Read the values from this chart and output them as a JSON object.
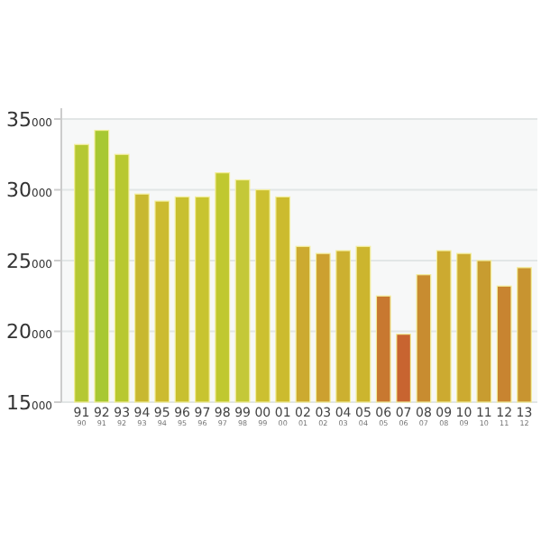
{
  "chart_data": {
    "type": "bar",
    "categories": [
      "91\n90",
      "92\n91",
      "93\n92",
      "94\n93",
      "95\n94",
      "96\n95",
      "97\n96",
      "98\n97",
      "99\n98",
      "00\n99",
      "01\n00",
      "02\n01",
      "03\n02",
      "04\n03",
      "05\n04",
      "06\n05",
      "07\n06",
      "08\n07",
      "09\n08",
      "10\n09",
      "11\n10",
      "12\n11",
      "13\n12"
    ],
    "values": [
      33200,
      34200,
      32500,
      29700,
      29200,
      29500,
      29500,
      31200,
      30700,
      30000,
      29500,
      26000,
      25500,
      25700,
      26000,
      22500,
      19800,
      24000,
      25700,
      25500,
      25000,
      23200,
      24500
    ],
    "colors": [
      "#b5c832",
      "#a8c832",
      "#b8c830",
      "#c8b830",
      "#ccbb30",
      "#c8c030",
      "#c8c430",
      "#c0c830",
      "#c4c838",
      "#ccc030",
      "#ccbb2e",
      "#ccaa30",
      "#cca030",
      "#ccb030",
      "#ccb52e",
      "#c87830",
      "#c86430",
      "#c88c30",
      "#ccaa30",
      "#ccaa30",
      "#c89c30",
      "#c88430",
      "#c89430"
    ],
    "ylim": [
      15000,
      35000
    ],
    "yticks": [
      15000,
      20000,
      25000,
      30000,
      35000
    ],
    "grid": "y"
  }
}
